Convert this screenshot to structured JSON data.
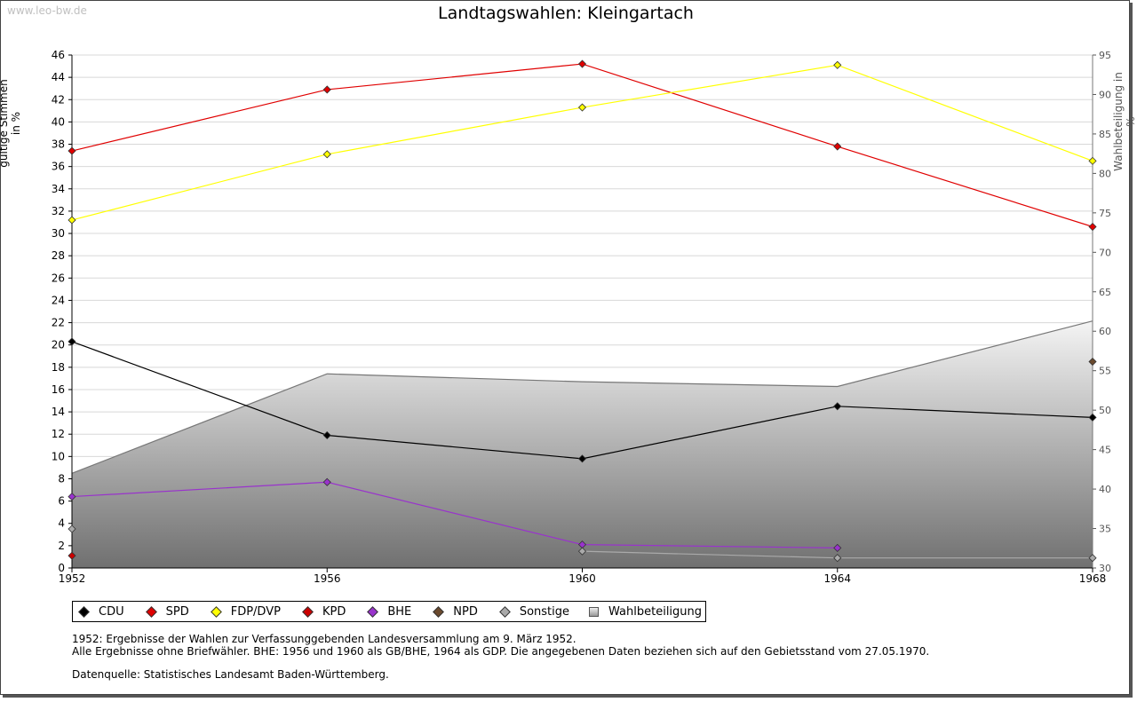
{
  "watermark": "www.leo-bw.de",
  "chart_data": {
    "type": "line",
    "title": "Landtagswahlen: Kleingartach",
    "ylabel": "gültige Stimmen in %",
    "y2label": "Wahlbeteiligung in %",
    "categories": [
      "1952",
      "1956",
      "1960",
      "1964",
      "1968"
    ],
    "ylim": [
      0,
      46
    ],
    "y2lim": [
      30,
      95
    ],
    "yticks": [
      "0",
      "2",
      "4",
      "6",
      "8",
      "10",
      "12",
      "14",
      "16",
      "18",
      "20",
      "22",
      "24",
      "26",
      "28",
      "30",
      "32",
      "34",
      "36",
      "38",
      "40",
      "42",
      "44",
      "46"
    ],
    "y2ticks": [
      "30",
      "35",
      "40",
      "45",
      "50",
      "55",
      "60",
      "65",
      "70",
      "75",
      "80",
      "85",
      "90",
      "95"
    ],
    "grid": true,
    "series": [
      {
        "name": "CDU",
        "color": "#000000",
        "values": [
          20.3,
          11.9,
          9.8,
          14.5,
          13.5
        ]
      },
      {
        "name": "SPD",
        "color": "#e00000",
        "values": [
          37.4,
          42.9,
          45.2,
          37.8,
          30.6
        ]
      },
      {
        "name": "FDP/DVP",
        "color": "#ffff00",
        "values": [
          31.2,
          37.1,
          41.3,
          45.1,
          36.5
        ]
      },
      {
        "name": "KPD",
        "color": "#cc0000",
        "values": [
          1.1,
          null,
          null,
          null,
          null
        ]
      },
      {
        "name": "BHE",
        "color": "#9933cc",
        "values": [
          6.4,
          7.7,
          2.1,
          1.8,
          null
        ]
      },
      {
        "name": "NPD",
        "color": "#6b4a2e",
        "values": [
          null,
          null,
          null,
          null,
          18.5
        ]
      },
      {
        "name": "Sonstige",
        "color": "#aaaaaa",
        "values": [
          3.5,
          null,
          1.5,
          0.9,
          0.9
        ]
      }
    ],
    "area": {
      "name": "Wahlbeteiligung",
      "axis": "y2",
      "values": [
        42.0,
        54.6,
        53.6,
        53.0,
        61.3
      ]
    }
  },
  "legend": [
    "CDU",
    "SPD",
    "FDP/DVP",
    "KPD",
    "BHE",
    "NPD",
    "Sonstige",
    "Wahlbeteiligung"
  ],
  "notes": {
    "line1": "1952: Ergebnisse der Wahlen zur Verfassunggebenden Landesversammlung am 9. März 1952.",
    "line2": "Alle Ergebnisse ohne Briefwähler. BHE: 1956 und 1960 als GB/BHE, 1964 als GDP. Die angegebenen Daten beziehen sich auf den Gebietsstand vom 27.05.1970.",
    "source": "Datenquelle: Statistisches Landesamt Baden-Württemberg."
  }
}
